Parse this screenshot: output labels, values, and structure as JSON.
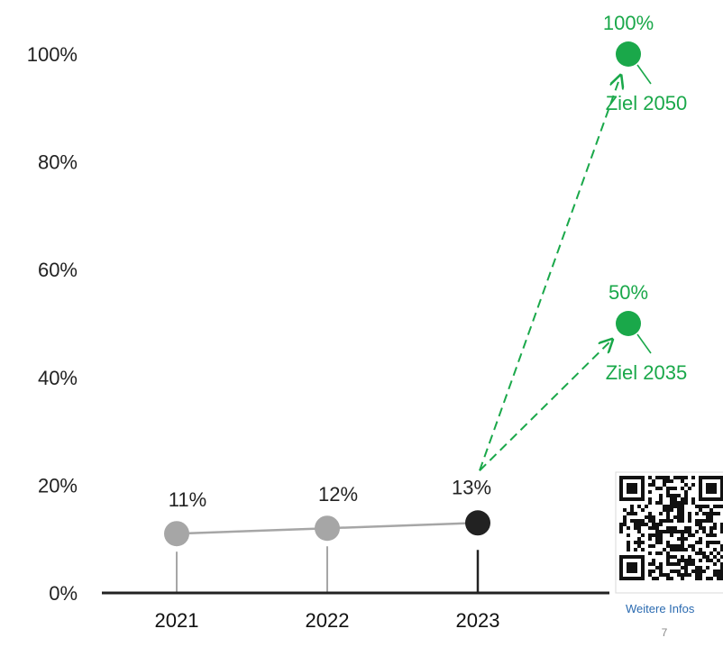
{
  "chart_data": {
    "type": "line",
    "categories": [
      "2021",
      "2022",
      "2023"
    ],
    "values": [
      11,
      12,
      13
    ],
    "value_labels": [
      "11%",
      "12%",
      "13%"
    ],
    "ylim": [
      0,
      100
    ],
    "yticks": [
      "0%",
      "20%",
      "40%",
      "60%",
      "80%",
      "100%"
    ],
    "grid": false,
    "goals": [
      {
        "label": "Ziel 2035",
        "value": 50,
        "value_label": "50%"
      },
      {
        "label": "Ziel 2050",
        "value": 100,
        "value_label": "100%"
      }
    ],
    "colors": {
      "history": "#a6a6a6",
      "current": "#222222",
      "goal": "#1aa84a",
      "axis": "#222222"
    }
  },
  "qr": {
    "caption": "Weitere Infos"
  },
  "page_number": "7"
}
